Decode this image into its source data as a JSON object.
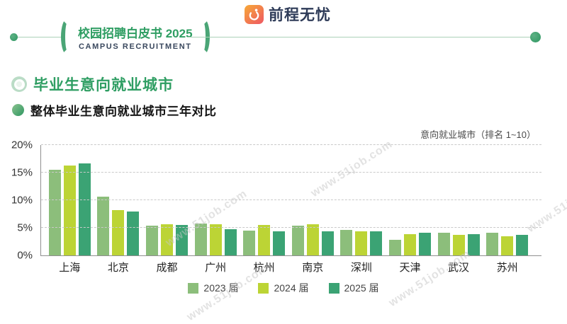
{
  "header": {
    "badge_title": "校园招聘白皮书 2025",
    "badge_subtitle": "CAMPUS RECRUITMENT",
    "logo_text": "前程无忧"
  },
  "section": {
    "title": "毕业生意向就业城市",
    "subtitle": "整体毕业生意向就业城市三年对比"
  },
  "chart_note": "意向就业城市（排名 1~10）",
  "watermark_text": "www.51job.com",
  "colors": {
    "accent_green": "#2f9e63",
    "header_line": "#abd2b8",
    "bar_2023": "#8CBE7B",
    "bar_2024": "#BCD435",
    "bar_2025": "#3BA374",
    "logo_gradient_start": "#f6a13b",
    "logo_gradient_end": "#ef5f5f"
  },
  "chart_data": {
    "type": "bar",
    "title": "整体毕业生意向就业城市三年对比",
    "note": "意向就业城市（排名 1~10）",
    "categories": [
      "上海",
      "北京",
      "成都",
      "广州",
      "杭州",
      "南京",
      "深圳",
      "天津",
      "武汉",
      "苏州"
    ],
    "series": [
      {
        "name": "2023 届",
        "color": "#8CBE7B",
        "values": [
          15.5,
          10.6,
          5.4,
          5.8,
          4.5,
          5.4,
          4.6,
          2.8,
          4.1,
          4.1
        ]
      },
      {
        "name": "2024 届",
        "color": "#BCD435",
        "values": [
          16.3,
          8.2,
          5.6,
          5.6,
          5.5,
          5.6,
          4.4,
          3.9,
          3.7,
          3.4
        ]
      },
      {
        "name": "2025 届",
        "color": "#3BA374",
        "values": [
          16.7,
          7.9,
          5.5,
          4.8,
          4.4,
          4.3,
          4.3,
          4.1,
          3.9,
          3.7
        ]
      }
    ],
    "xlabel": "",
    "ylabel": "",
    "y_ticks": [
      "0%",
      "5%",
      "10%",
      "15%",
      "20%"
    ],
    "ylim": [
      0,
      20
    ],
    "grid": "horizontal-dashed",
    "legend_position": "bottom"
  }
}
